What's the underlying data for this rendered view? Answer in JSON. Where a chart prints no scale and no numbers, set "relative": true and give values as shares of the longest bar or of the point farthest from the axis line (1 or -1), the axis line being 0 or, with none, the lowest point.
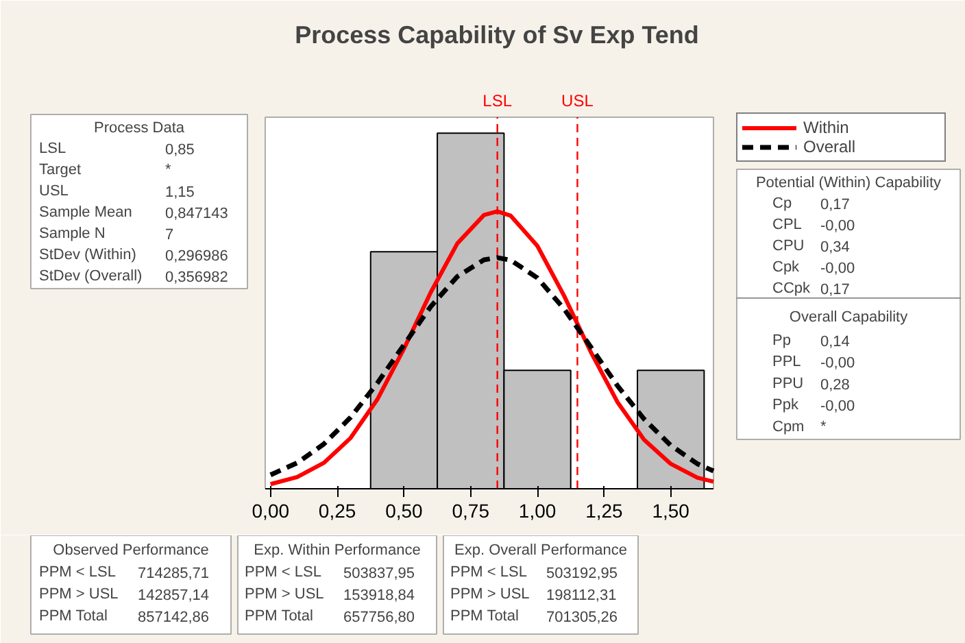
{
  "chart_data": {
    "type": "histogram",
    "title": "Process Capability of Sv Exp Tend",
    "relative": true,
    "bins": [
      0.375,
      0.625,
      0.875,
      1.125,
      1.375,
      1.625
    ],
    "values": [
      0.6667,
      1,
      0.3333,
      0,
      0.3333
    ],
    "color": "#c0c0c0",
    "series": [
      {
        "name": "Within",
        "type": "line",
        "color": "#ff0000",
        "line_style": "solid",
        "x": [
          0,
          0.1,
          0.2,
          0.3,
          0.4,
          0.5,
          0.6,
          0.7,
          0.8,
          0.85,
          0.9,
          1.0,
          1.1,
          1.2,
          1.3,
          1.4,
          1.5,
          1.6,
          1.66
        ],
        "values": [
          0.013,
          0.033,
          0.073,
          0.143,
          0.251,
          0.394,
          0.552,
          0.69,
          0.77,
          0.78,
          0.768,
          0.683,
          0.543,
          0.385,
          0.244,
          0.138,
          0.07,
          0.031,
          0.02
        ]
      },
      {
        "name": "Overall",
        "type": "line",
        "color": "#000000",
        "line_style": "dashed",
        "x": [
          0,
          0.1,
          0.2,
          0.3,
          0.4,
          0.5,
          0.6,
          0.7,
          0.8,
          0.85,
          0.9,
          1.0,
          1.1,
          1.2,
          1.3,
          1.4,
          1.5,
          1.6,
          1.66
        ],
        "values": [
          0.039,
          0.073,
          0.126,
          0.201,
          0.297,
          0.405,
          0.512,
          0.597,
          0.644,
          0.65,
          0.643,
          0.593,
          0.506,
          0.399,
          0.29,
          0.196,
          0.122,
          0.07,
          0.05
        ]
      }
    ],
    "xlim": [
      -0.02,
      1.66
    ],
    "xticks": [
      {
        "value": 0,
        "label": "0,00"
      },
      {
        "value": 0.25,
        "label": "0,25"
      },
      {
        "value": 0.5,
        "label": "0,50"
      },
      {
        "value": 0.75,
        "label": "0,75"
      },
      {
        "value": 1.0,
        "label": "1,00"
      },
      {
        "value": 1.25,
        "label": "1,25"
      },
      {
        "value": 1.5,
        "label": "1,50"
      }
    ],
    "ref_lines": [
      {
        "axis": "x",
        "value": 0.85,
        "label": "LSL",
        "color": "#ff0000",
        "line_style": "dashed"
      },
      {
        "axis": "x",
        "value": 1.15,
        "label": "USL",
        "color": "#ff0000",
        "line_style": "dashed"
      }
    ],
    "legend": "right",
    "annotations": [
      "Process Data",
      "LSL",
      "0,85",
      "Target",
      "*",
      "USL",
      "1,15",
      "Sample Mean",
      "0,847143",
      "Sample N",
      "7",
      "StDev (Within)",
      "0,296986",
      "StDev (Overall)",
      "0,356982",
      "Potential (Within) Capability",
      "Cp",
      "0,17",
      "CPL",
      "-0,00",
      "CPU",
      "0,34",
      "Cpk",
      "-0,00",
      "CCpk",
      "0,17",
      "Overall Capability",
      "Pp",
      "0,14",
      "PPL",
      "-0,00",
      "PPU",
      "0,28",
      "Ppk",
      "-0,00",
      "Cpm",
      "*",
      "Observed Performance",
      "PPM < LSL",
      "714285,71",
      "PPM > USL",
      "142857,14",
      "PPM Total",
      "857142,86",
      "Exp. Within Performance",
      "PPM < LSL",
      "503837,95",
      "PPM > USL",
      "153918,84",
      "PPM Total",
      "657756,80",
      "Exp. Overall Performance",
      "PPM < LSL",
      "503192,95",
      "PPM > USL",
      "198112,31",
      "PPM Total",
      "701305,26"
    ]
  }
}
